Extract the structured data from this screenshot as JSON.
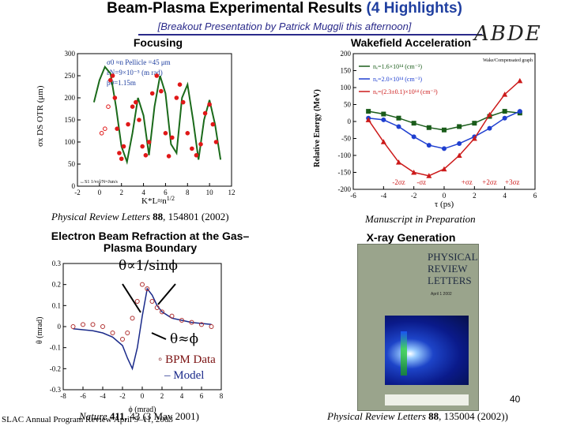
{
  "header": {
    "title_main": "Beam-Plasma Experimental Results ",
    "title_highlight": "(4 Highlights)",
    "subtitle": "[Breakout Presentation by Patrick Muggli this afternoon]",
    "logo_text": "ABDE"
  },
  "panels": {
    "focusing": {
      "title": "Focusing",
      "ylabel": "σx DS OTR (μm)",
      "xlabel": "K*L≈n",
      "xlabel_sup": "1/2",
      "yticks": [
        "300",
        "250",
        "200",
        "150",
        "100",
        "50",
        "0"
      ],
      "xticks": [
        "-2",
        "0",
        "2",
        "4",
        "6",
        "8",
        "10",
        "12"
      ],
      "legend": [
        "σ0 ≈n Pellicle =45 μm",
        "εN=9×10⁻⁵ (m rad)",
        "β0=1.15m"
      ],
      "corner_note": "↔S1 1/vol/N=Jun/s",
      "citation_journal": "Physical Review Letters ",
      "citation_vol": "88",
      "citation_rest": ", 154801 (2002)"
    },
    "wakefield": {
      "title": "Wakefield Acceleration",
      "ylabel": "Relative Energy (MeV)",
      "xlabel": "τ (ps)",
      "yticks": [
        "200",
        "150",
        "100",
        "50",
        "0",
        "-50",
        "-100",
        "-150",
        "-200"
      ],
      "xticks": [
        "-6",
        "-4",
        "-2",
        "0",
        "2",
        "4",
        "6"
      ],
      "legend": [
        "nₑ=1.6×10¹⁴ (cm⁻³)",
        "nₑ=2.0×10¹⁴ (cm⁻³)",
        "nₑ=(2.3±0.1)×10¹⁴ (cm⁻³)"
      ],
      "sigma_labels": [
        "-2σz",
        "-σz",
        "+σz",
        "+2σz",
        "+3σz"
      ],
      "corner_note": "Wake/Compensated graph",
      "citation": "Manuscript in Preparation"
    },
    "refraction": {
      "title_line1": "Electron Beam Refraction at the Gas–",
      "title_line2": "Plasma Boundary",
      "formula_top": "θ∝1/sinϕ",
      "formula_mid": "θ≈ϕ",
      "legend_data": "◦ BPM Data",
      "legend_model": "– Model",
      "ylabel": "θ (mrad)",
      "xlabel": "ϕ (mrad)",
      "yticks": [
        "0.3",
        "0.2",
        "0.1",
        "0",
        "-0.1",
        "-0.2",
        "-0.3"
      ],
      "xticks": [
        "-8",
        "-6",
        "-4",
        "-2",
        "0",
        "2",
        "4",
        "6",
        "8"
      ],
      "citation_journal": "Nature ",
      "citation_vol": "411",
      "citation_rest": ", 43 (3 May 2001)"
    },
    "xray": {
      "title": "X-ray Generation",
      "cover_line1": "PHYSICAL",
      "cover_line2": "REVIEW",
      "cover_line3": "LETTERS",
      "cover_date": "April 1 2002",
      "citation_journal": "Physical Review Letters ",
      "citation_vol": "88",
      "citation_rest": ", 135004 (2002))"
    }
  },
  "footer": {
    "left": "SLAC Annual Program Review April 9–11, 2003",
    "slide_number": "40"
  },
  "chart_data": [
    {
      "type": "scatter",
      "title": "Focusing",
      "xlabel": "K*L≈n^1/2",
      "ylabel": "σx DS OTR (μm)",
      "xlim": [
        -2,
        12
      ],
      "ylim": [
        0,
        300
      ],
      "series": [
        {
          "name": "data",
          "x": [
            0.2,
            0.5,
            0.8,
            1.0,
            1.2,
            1.4,
            1.6,
            1.8,
            2.0,
            2.2,
            2.6,
            3.0,
            3.3,
            3.6,
            3.9,
            4.2,
            4.5,
            4.8,
            5.2,
            5.6,
            6.0,
            6.3,
            6.6,
            7.0,
            7.3,
            7.6,
            8.0,
            8.4,
            8.8,
            9.2,
            9.6,
            10.0,
            10.3,
            10.6
          ],
          "y": [
            120,
            130,
            180,
            240,
            250,
            200,
            130,
            75,
            62,
            90,
            140,
            180,
            190,
            150,
            90,
            70,
            100,
            210,
            250,
            215,
            120,
            68,
            110,
            200,
            230,
            190,
            120,
            85,
            70,
            95,
            165,
            185,
            140,
            100
          ]
        },
        {
          "name": "model",
          "x": [
            -0.5,
            0,
            0.5,
            1,
            1.5,
            2,
            2.5,
            3,
            3.5,
            4,
            4.5,
            5,
            5.5,
            6,
            6.5,
            7,
            7.5,
            8,
            8.5,
            9,
            9.5,
            10,
            10.5,
            11
          ],
          "y": [
            190,
            240,
            270,
            255,
            180,
            90,
            55,
            120,
            200,
            160,
            70,
            180,
            250,
            210,
            95,
            75,
            200,
            230,
            150,
            60,
            150,
            195,
            140,
            60
          ]
        }
      ]
    },
    {
      "type": "line",
      "title": "Wakefield Acceleration",
      "xlabel": "τ (ps)",
      "ylabel": "Relative Energy (MeV)",
      "xlim": [
        -6,
        6
      ],
      "ylim": [
        -200,
        200
      ],
      "x": [
        -5,
        -4,
        -3,
        -2,
        -1,
        0,
        1,
        2,
        3,
        4,
        5
      ],
      "series": [
        {
          "name": "nₑ=1.6×10¹⁴ (cm⁻³)",
          "color": "#1a5c1a",
          "values": [
            30,
            22,
            10,
            -5,
            -18,
            -25,
            -15,
            -5,
            15,
            30,
            25
          ]
        },
        {
          "name": "nₑ=2.0×10¹⁴ (cm⁻³)",
          "color": "#1f3fd0",
          "values": [
            10,
            5,
            -15,
            -45,
            -70,
            -80,
            -65,
            -45,
            -20,
            10,
            30
          ]
        },
        {
          "name": "nₑ=(2.3±0.1)×10¹⁴ (cm⁻³)",
          "color": "#cc1a1a",
          "values": [
            5,
            -60,
            -120,
            -150,
            -160,
            -140,
            -100,
            -50,
            20,
            80,
            120
          ]
        }
      ]
    },
    {
      "type": "line",
      "title": "Electron Beam Refraction at the Gas–Plasma Boundary",
      "xlabel": "ϕ (mrad)",
      "ylabel": "θ (mrad)",
      "xlim": [
        -8,
        8
      ],
      "ylim": [
        -0.3,
        0.3
      ],
      "series": [
        {
          "name": "BPM Data",
          "x": [
            -7,
            -6,
            -5,
            -4,
            -3,
            -2,
            -1.5,
            -1,
            -0.5,
            0,
            0.5,
            1,
            1.5,
            2,
            3,
            4,
            5,
            6,
            7
          ],
          "y": [
            0.0,
            0.01,
            0.01,
            0.0,
            -0.03,
            -0.06,
            -0.03,
            0.04,
            0.12,
            0.2,
            0.18,
            0.12,
            0.09,
            0.07,
            0.05,
            0.03,
            0.02,
            0.01,
            0.0
          ]
        },
        {
          "name": "Model",
          "x": [
            -7,
            -6,
            -5,
            -4,
            -3,
            -2,
            -1.5,
            -1,
            -0.5,
            0,
            0.5,
            1,
            1.5,
            2,
            3,
            4,
            5,
            6,
            7
          ],
          "y": [
            -0.01,
            -0.015,
            -0.02,
            -0.03,
            -0.05,
            -0.09,
            -0.15,
            -0.2,
            -0.1,
            0.05,
            0.18,
            0.15,
            0.1,
            0.07,
            0.04,
            0.03,
            0.02,
            0.015,
            0.01
          ]
        }
      ]
    }
  ]
}
